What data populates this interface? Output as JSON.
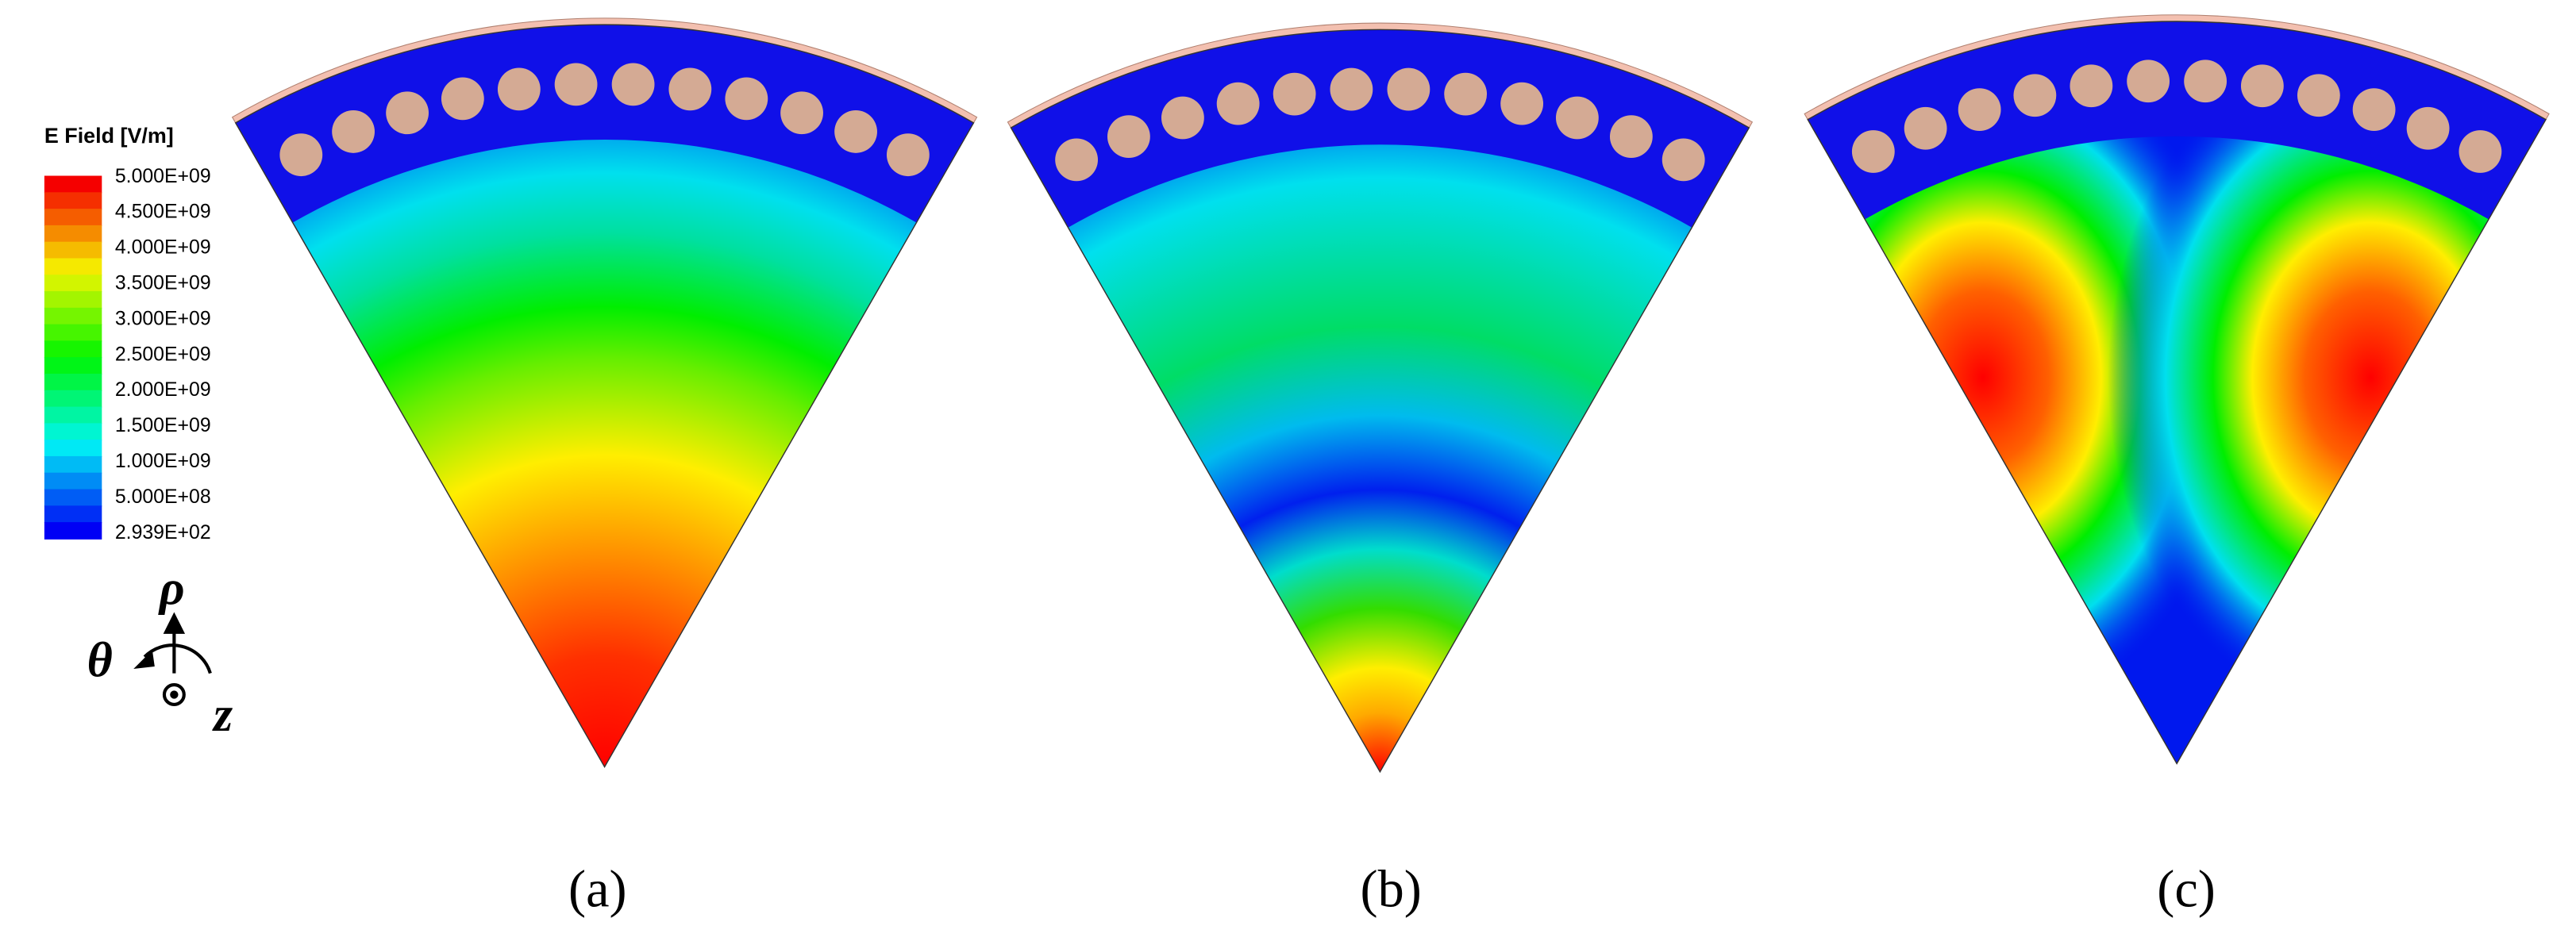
{
  "legend": {
    "title": "E Field [V/m]",
    "labels": [
      "5.000E+09",
      "4.500E+09",
      "4.000E+09",
      "3.500E+09",
      "3.000E+09",
      "2.500E+09",
      "2.000E+09",
      "1.500E+09",
      "1.000E+09",
      "5.000E+08",
      "2.939E+02"
    ]
  },
  "axes": {
    "rho": "ρ",
    "theta": "θ",
    "z": "z"
  },
  "panels": [
    {
      "label": "(a)"
    },
    {
      "label": "(b)"
    },
    {
      "label": "(c)"
    }
  ]
}
